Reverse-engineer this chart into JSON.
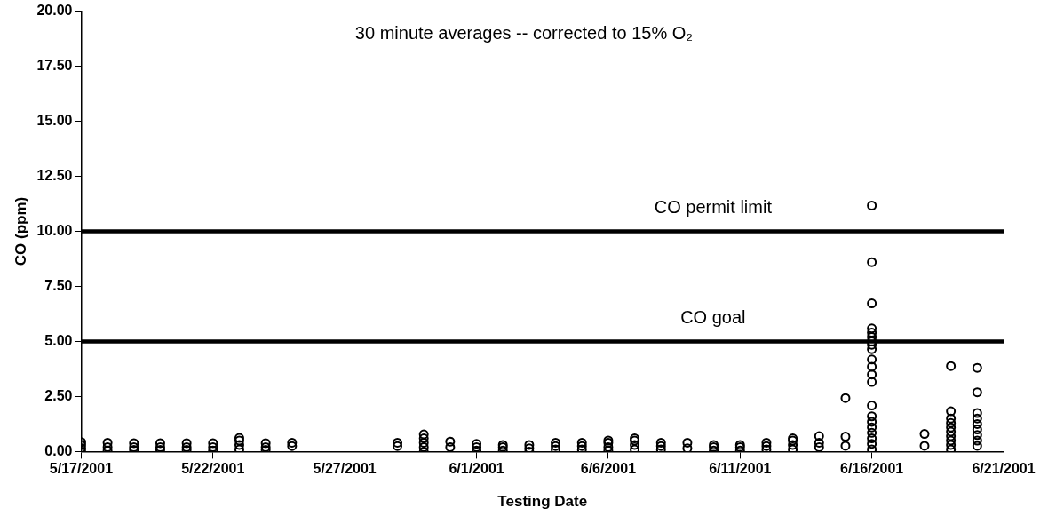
{
  "chart_data": {
    "type": "scatter",
    "xlabel": "Testing Date",
    "ylabel": "CO (ppm)",
    "annotations": [
      "30 minute averages -- corrected to 15% O₂"
    ],
    "x": [
      "2001-05-17",
      "2001-05-17",
      "2001-05-17",
      "2001-05-17",
      "2001-05-18",
      "2001-05-18",
      "2001-05-18",
      "2001-05-19",
      "2001-05-19",
      "2001-05-19",
      "2001-05-20",
      "2001-05-20",
      "2001-05-20",
      "2001-05-21",
      "2001-05-21",
      "2001-05-21",
      "2001-05-22",
      "2001-05-22",
      "2001-05-22",
      "2001-05-23",
      "2001-05-23",
      "2001-05-23",
      "2001-05-23",
      "2001-05-24",
      "2001-05-24",
      "2001-05-24",
      "2001-05-25",
      "2001-05-25",
      "2001-05-29",
      "2001-05-29",
      "2001-05-30",
      "2001-05-30",
      "2001-05-30",
      "2001-05-30",
      "2001-05-30",
      "2001-05-31",
      "2001-05-31",
      "2001-06-01",
      "2001-06-01",
      "2001-06-01",
      "2001-06-02",
      "2001-06-02",
      "2001-06-02",
      "2001-06-03",
      "2001-06-03",
      "2001-06-03",
      "2001-06-04",
      "2001-06-04",
      "2001-06-04",
      "2001-06-05",
      "2001-06-05",
      "2001-06-05",
      "2001-06-06",
      "2001-06-06",
      "2001-06-06",
      "2001-06-06",
      "2001-06-07",
      "2001-06-07",
      "2001-06-07",
      "2001-06-07",
      "2001-06-08",
      "2001-06-08",
      "2001-06-08",
      "2001-06-09",
      "2001-06-09",
      "2001-06-10",
      "2001-06-10",
      "2001-06-10",
      "2001-06-11",
      "2001-06-11",
      "2001-06-11",
      "2001-06-12",
      "2001-06-12",
      "2001-06-12",
      "2001-06-13",
      "2001-06-13",
      "2001-06-13",
      "2001-06-13",
      "2001-06-14",
      "2001-06-14",
      "2001-06-14",
      "2001-06-15",
      "2001-06-15",
      "2001-06-15",
      "2001-06-16",
      "2001-06-16",
      "2001-06-16",
      "2001-06-16",
      "2001-06-16",
      "2001-06-16",
      "2001-06-16",
      "2001-06-16",
      "2001-06-16",
      "2001-06-16",
      "2001-06-16",
      "2001-06-16",
      "2001-06-16",
      "2001-06-16",
      "2001-06-16",
      "2001-06-16",
      "2001-06-16",
      "2001-06-16",
      "2001-06-16",
      "2001-06-16",
      "2001-06-16",
      "2001-06-18",
      "2001-06-18",
      "2001-06-19",
      "2001-06-19",
      "2001-06-19",
      "2001-06-19",
      "2001-06-19",
      "2001-06-19",
      "2001-06-19",
      "2001-06-19",
      "2001-06-19",
      "2001-06-19",
      "2001-06-20",
      "2001-06-20",
      "2001-06-20",
      "2001-06-20",
      "2001-06-20",
      "2001-06-20",
      "2001-06-20",
      "2001-06-20",
      "2001-06-20"
    ],
    "values": [
      0.0,
      0.15,
      0.3,
      0.43,
      0.05,
      0.2,
      0.4,
      0.08,
      0.2,
      0.38,
      0.08,
      0.2,
      0.38,
      0.08,
      0.2,
      0.38,
      0.05,
      0.2,
      0.38,
      0.1,
      0.3,
      0.5,
      0.62,
      0.08,
      0.2,
      0.38,
      0.25,
      0.4,
      0.25,
      0.4,
      0.0,
      0.2,
      0.4,
      0.6,
      0.78,
      0.2,
      0.45,
      0.05,
      0.2,
      0.35,
      0.05,
      0.2,
      0.3,
      0.0,
      0.15,
      0.3,
      0.1,
      0.25,
      0.4,
      0.1,
      0.25,
      0.4,
      0.05,
      0.2,
      0.4,
      0.5,
      0.1,
      0.3,
      0.5,
      0.6,
      0.1,
      0.25,
      0.4,
      0.15,
      0.4,
      0.05,
      0.2,
      0.3,
      0.05,
      0.2,
      0.3,
      0.1,
      0.25,
      0.4,
      0.1,
      0.3,
      0.5,
      0.6,
      0.2,
      0.4,
      0.7,
      0.26,
      0.68,
      2.43,
      0.1,
      0.35,
      0.6,
      0.85,
      1.1,
      1.35,
      1.6,
      2.09,
      3.16,
      3.5,
      3.85,
      4.18,
      4.65,
      4.85,
      5.0,
      5.2,
      5.4,
      5.59,
      6.73,
      8.6,
      11.17,
      0.26,
      0.8,
      0.1,
      0.3,
      0.5,
      0.7,
      0.9,
      1.1,
      1.3,
      1.5,
      1.83,
      3.88,
      0.26,
      0.5,
      0.75,
      1.0,
      1.25,
      1.5,
      1.75,
      2.69,
      3.8
    ],
    "color": "#000000",
    "marker": "circle",
    "legend": false,
    "grid": false,
    "xlim": [
      "2001-05-17",
      "2001-06-21"
    ],
    "xticks": [
      {
        "value": "2001-05-17",
        "label": "5/17/2001"
      },
      {
        "value": "2001-05-22",
        "label": "5/22/2001"
      },
      {
        "value": "2001-05-27",
        "label": "5/27/2001"
      },
      {
        "value": "2001-06-01",
        "label": "6/1/2001"
      },
      {
        "value": "2001-06-06",
        "label": "6/6/2001"
      },
      {
        "value": "2001-06-11",
        "label": "6/11/2001"
      },
      {
        "value": "2001-06-16",
        "label": "6/16/2001"
      },
      {
        "value": "2001-06-21",
        "label": "6/21/2001"
      }
    ],
    "ylim": [
      0,
      20
    ],
    "yticks": [
      {
        "value": 0,
        "label": "0.00"
      },
      {
        "value": 2.5,
        "label": "2.50"
      },
      {
        "value": 5,
        "label": "5.00"
      },
      {
        "value": 7.5,
        "label": "7.50"
      },
      {
        "value": 10,
        "label": "10.00"
      },
      {
        "value": 12.5,
        "label": "12.50"
      },
      {
        "value": 15,
        "label": "15.00"
      },
      {
        "value": 17.5,
        "label": "17.50"
      },
      {
        "value": 20,
        "label": "20.00"
      }
    ],
    "ref_lines": [
      {
        "axis": "y",
        "value": 10,
        "label": "CO permit limit",
        "color": "#000000"
      },
      {
        "axis": "y",
        "value": 5,
        "label": "CO goal",
        "color": "#000000"
      }
    ]
  }
}
